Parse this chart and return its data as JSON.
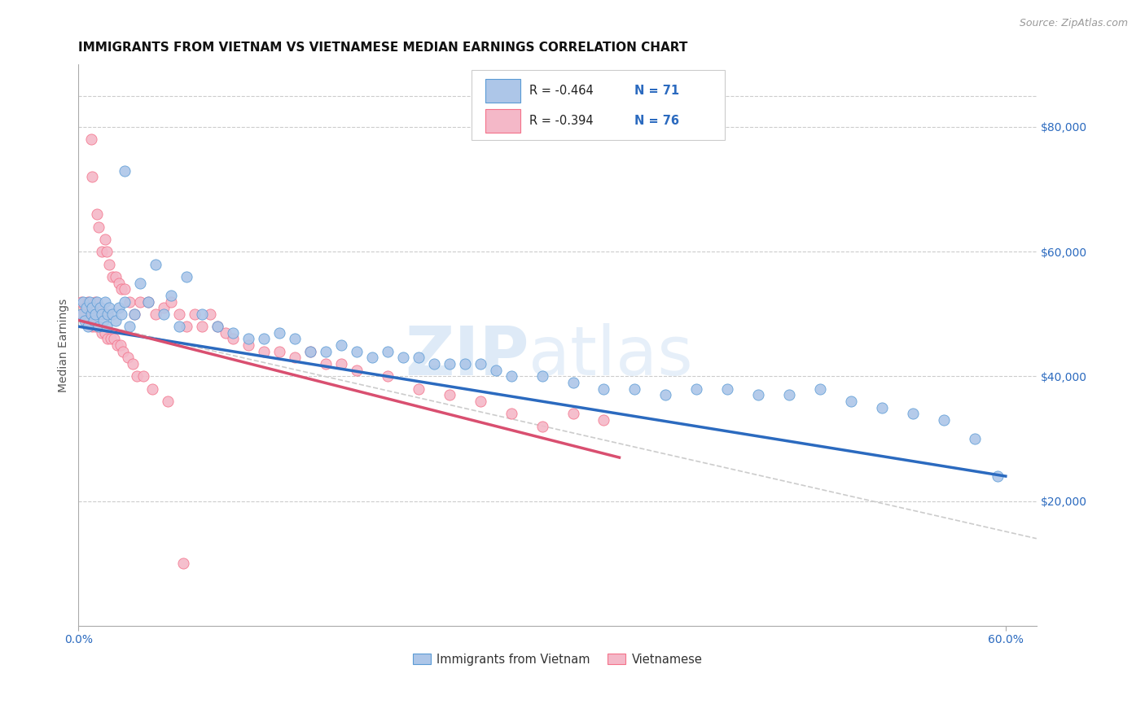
{
  "title": "IMMIGRANTS FROM VIETNAM VS VIETNAMESE MEDIAN EARNINGS CORRELATION CHART",
  "source": "Source: ZipAtlas.com",
  "ylabel": "Median Earnings",
  "right_yticks": [
    20000,
    40000,
    60000,
    80000
  ],
  "right_yticklabels": [
    "$20,000",
    "$40,000",
    "$60,000",
    "$80,000"
  ],
  "legend_entries": [
    {
      "label": "Immigrants from Vietnam",
      "R": "-0.464",
      "N": "71"
    },
    {
      "label": "Vietnamese",
      "R": "-0.394",
      "N": "76"
    }
  ],
  "watermark_zip": "ZIP",
  "watermark_atlas": "atlas",
  "blue_scatter_x": [
    0.002,
    0.003,
    0.004,
    0.005,
    0.006,
    0.007,
    0.008,
    0.009,
    0.01,
    0.011,
    0.012,
    0.013,
    0.014,
    0.015,
    0.016,
    0.017,
    0.018,
    0.019,
    0.02,
    0.022,
    0.024,
    0.026,
    0.028,
    0.03,
    0.033,
    0.036,
    0.04,
    0.045,
    0.05,
    0.055,
    0.06,
    0.065,
    0.07,
    0.08,
    0.09,
    0.1,
    0.11,
    0.12,
    0.13,
    0.14,
    0.15,
    0.16,
    0.17,
    0.18,
    0.19,
    0.2,
    0.21,
    0.22,
    0.23,
    0.24,
    0.25,
    0.26,
    0.27,
    0.28,
    0.3,
    0.32,
    0.34,
    0.36,
    0.38,
    0.4,
    0.42,
    0.44,
    0.46,
    0.48,
    0.5,
    0.52,
    0.54,
    0.56,
    0.58,
    0.595,
    0.03
  ],
  "blue_scatter_y": [
    50000,
    52000,
    49000,
    51000,
    48000,
    52000,
    50000,
    51000,
    49000,
    50000,
    52000,
    48000,
    51000,
    50000,
    49000,
    52000,
    48000,
    50000,
    51000,
    50000,
    49000,
    51000,
    50000,
    52000,
    48000,
    50000,
    55000,
    52000,
    58000,
    50000,
    53000,
    48000,
    56000,
    50000,
    48000,
    47000,
    46000,
    46000,
    47000,
    46000,
    44000,
    44000,
    45000,
    44000,
    43000,
    44000,
    43000,
    43000,
    42000,
    42000,
    42000,
    42000,
    41000,
    40000,
    40000,
    39000,
    38000,
    38000,
    37000,
    38000,
    38000,
    37000,
    37000,
    38000,
    36000,
    35000,
    34000,
    33000,
    30000,
    24000,
    73000
  ],
  "pink_scatter_x": [
    0.002,
    0.003,
    0.004,
    0.005,
    0.006,
    0.007,
    0.008,
    0.009,
    0.01,
    0.011,
    0.012,
    0.013,
    0.014,
    0.015,
    0.016,
    0.017,
    0.018,
    0.019,
    0.02,
    0.022,
    0.024,
    0.026,
    0.028,
    0.03,
    0.033,
    0.036,
    0.04,
    0.045,
    0.05,
    0.055,
    0.06,
    0.065,
    0.07,
    0.075,
    0.08,
    0.085,
    0.09,
    0.095,
    0.1,
    0.11,
    0.12,
    0.13,
    0.14,
    0.15,
    0.16,
    0.17,
    0.18,
    0.2,
    0.22,
    0.24,
    0.26,
    0.28,
    0.3,
    0.32,
    0.34,
    0.003,
    0.005,
    0.007,
    0.009,
    0.011,
    0.013,
    0.015,
    0.017,
    0.019,
    0.021,
    0.023,
    0.025,
    0.027,
    0.029,
    0.032,
    0.035,
    0.038,
    0.042,
    0.048,
    0.058,
    0.068
  ],
  "pink_scatter_y": [
    52000,
    50000,
    51000,
    49000,
    52000,
    50000,
    78000,
    72000,
    50000,
    52000,
    66000,
    64000,
    51000,
    60000,
    50000,
    62000,
    60000,
    50000,
    58000,
    56000,
    56000,
    55000,
    54000,
    54000,
    52000,
    50000,
    52000,
    52000,
    50000,
    51000,
    52000,
    50000,
    48000,
    50000,
    48000,
    50000,
    48000,
    47000,
    46000,
    45000,
    44000,
    44000,
    43000,
    44000,
    42000,
    42000,
    41000,
    40000,
    38000,
    37000,
    36000,
    34000,
    32000,
    34000,
    33000,
    50000,
    49000,
    49000,
    48000,
    48000,
    48000,
    47000,
    47000,
    46000,
    46000,
    46000,
    45000,
    45000,
    44000,
    43000,
    42000,
    40000,
    40000,
    38000,
    36000,
    10000
  ],
  "blue_line_x": [
    0.0,
    0.6
  ],
  "blue_line_y": [
    48000,
    24000
  ],
  "pink_line_x": [
    0.0,
    0.35
  ],
  "pink_line_y": [
    49000,
    27000
  ],
  "dash_line_x": [
    0.0,
    0.62
  ],
  "dash_line_y": [
    49000,
    14000
  ],
  "blue_color": "#5b9bd5",
  "pink_color": "#f4728a",
  "blue_fill": "#adc6e8",
  "pink_fill": "#f4b8c8",
  "blue_line_color": "#2b6abf",
  "pink_line_color": "#d94f70",
  "dash_color": "#cccccc",
  "xlim": [
    0.0,
    0.62
  ],
  "ylim": [
    0,
    90000
  ],
  "xtick_left_label": "0.0%",
  "xtick_right_label": "60.0%",
  "title_fontsize": 11,
  "source_fontsize": 9,
  "legend_R_color": "#222222",
  "legend_N_color": "#2b6abf"
}
